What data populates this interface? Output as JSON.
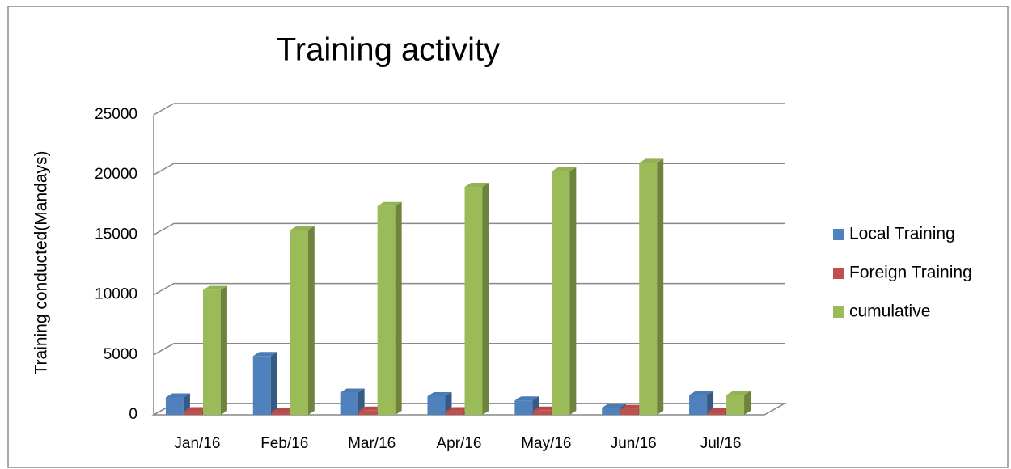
{
  "chart_data": {
    "type": "bar3d",
    "title": "Training activity",
    "y_label": "Training conducted(Mandays)",
    "categories": [
      "Jan/16",
      "Feb/16",
      "Mar/16",
      "Apr/16",
      "May/16",
      "Jun/16",
      "Jul/16"
    ],
    "series": [
      {
        "name": "Local Training",
        "color": "#4f81bd",
        "values": [
          1450,
          4900,
          1850,
          1550,
          1200,
          600,
          1650
        ]
      },
      {
        "name": "Foreign Training",
        "color": "#c0504d",
        "values": [
          300,
          250,
          350,
          300,
          350,
          500,
          250
        ]
      },
      {
        "name": "cumulative",
        "color": "#9bbb59",
        "values": [
          10400,
          15400,
          17400,
          19000,
          20300,
          21000,
          1650
        ]
      }
    ],
    "ylim": [
      0,
      25000
    ],
    "yticks": [
      0,
      5000,
      10000,
      15000,
      20000,
      25000
    ],
    "grid": true,
    "legend": "right"
  }
}
